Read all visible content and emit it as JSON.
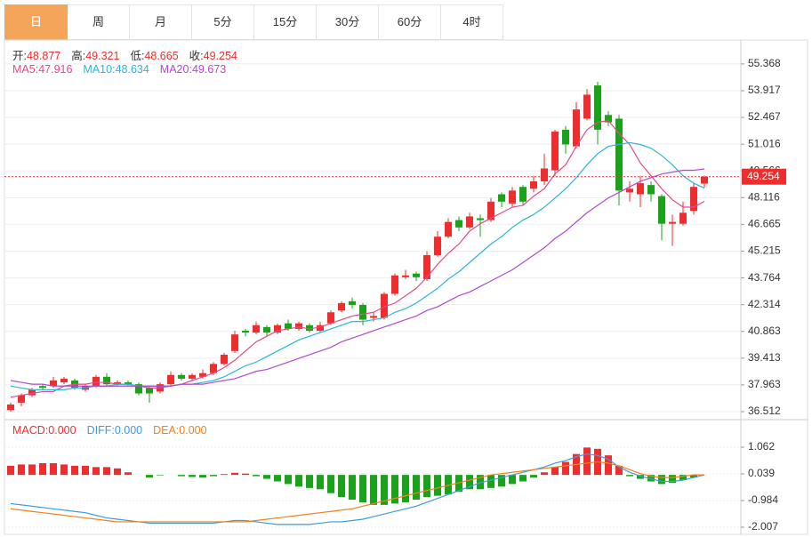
{
  "tabs": [
    "日",
    "周",
    "月",
    "5分",
    "15分",
    "30分",
    "60分",
    "4时"
  ],
  "active_tab": 0,
  "chart_data": [
    {
      "type": "candlestick",
      "ohlc_labels": [
        "开:",
        "高:",
        "低:",
        "收:"
      ],
      "up_color": "#ee2e2e",
      "down_color": "#1aa31a",
      "open": [
        36.6,
        37.0,
        37.4,
        37.9,
        37.9,
        38.1,
        38.2,
        37.7,
        37.9,
        38.4,
        38.0,
        38.1,
        38.0,
        37.8,
        37.6,
        38.0,
        38.5,
        38.3,
        38.4,
        38.6,
        39.1,
        39.8,
        40.9,
        40.8,
        41.1,
        40.8,
        41.3,
        41.0,
        41.2,
        40.9,
        41.3,
        42.0,
        42.5,
        42.3,
        41.6,
        41.6,
        42.9,
        43.8,
        44.0,
        43.7,
        45.0,
        46.0,
        46.9,
        46.5,
        47.0,
        46.9,
        48.3,
        47.8,
        48.7,
        48.6,
        49.0,
        49.6,
        51.8,
        50.9,
        52.4,
        54.2,
        52.6,
        52.4,
        48.4,
        48.3,
        48.8,
        48.2,
        46.7,
        46.7,
        47.4,
        48.877
      ],
      "high": [
        37.0,
        37.5,
        37.8,
        38.0,
        38.4,
        38.4,
        38.3,
        38.0,
        38.5,
        38.6,
        38.2,
        38.2,
        38.1,
        37.9,
        38.1,
        38.7,
        38.6,
        38.6,
        38.8,
        39.2,
        39.7,
        40.9,
        41.0,
        41.4,
        41.2,
        41.3,
        41.5,
        41.4,
        41.3,
        41.4,
        42.0,
        42.5,
        42.7,
        42.4,
        41.9,
        43.0,
        44.0,
        44.2,
        44.1,
        45.2,
        46.3,
        47.0,
        47.1,
        47.3,
        47.2,
        48.1,
        48.4,
        48.7,
        48.8,
        49.3,
        50.5,
        51.8,
        52.0,
        53.3,
        54.0,
        54.4,
        52.8,
        52.6,
        49.0,
        49.3,
        49.0,
        48.3,
        47.2,
        47.9,
        48.9,
        49.321
      ],
      "low": [
        36.5,
        36.8,
        37.3,
        37.7,
        37.8,
        38.0,
        37.7,
        37.6,
        37.8,
        37.9,
        37.9,
        37.9,
        37.4,
        37.0,
        37.5,
        37.9,
        38.2,
        38.2,
        38.3,
        38.5,
        39.0,
        39.7,
        40.6,
        40.7,
        40.6,
        40.7,
        40.9,
        40.9,
        40.8,
        40.8,
        41.2,
        41.9,
        42.1,
        41.2,
        41.4,
        41.5,
        42.8,
        43.7,
        43.6,
        43.6,
        44.9,
        45.9,
        46.3,
        46.4,
        46.0,
        46.8,
        47.6,
        47.6,
        47.7,
        48.4,
        48.8,
        49.3,
        50.5,
        50.8,
        52.3,
        51.0,
        52.0,
        47.7,
        47.9,
        47.6,
        47.9,
        45.8,
        45.5,
        46.6,
        47.2,
        48.665
      ],
      "close": [
        36.9,
        37.4,
        37.7,
        37.8,
        38.2,
        38.3,
        37.8,
        37.9,
        38.4,
        38.0,
        38.1,
        38.0,
        37.5,
        37.5,
        38.0,
        38.5,
        38.3,
        38.5,
        38.6,
        39.1,
        39.6,
        40.7,
        40.8,
        41.2,
        40.8,
        41.2,
        41.0,
        41.3,
        40.9,
        41.2,
        41.9,
        42.4,
        42.3,
        41.5,
        41.7,
        42.9,
        43.9,
        43.9,
        43.8,
        45.0,
        46.0,
        46.8,
        46.5,
        47.1,
        46.9,
        47.9,
        47.9,
        48.5,
        47.9,
        49.0,
        49.7,
        51.7,
        51.0,
        52.9,
        53.7,
        51.8,
        52.2,
        48.5,
        48.6,
        48.9,
        48.3,
        46.7,
        46.8,
        47.3,
        48.7,
        49.254
      ],
      "series": [
        {
          "name": "MA5:",
          "color": "#e8488a",
          "values": [
            37.3,
            37.4,
            37.5,
            37.6,
            37.6,
            37.9,
            38.0,
            38.0,
            38.1,
            38.1,
            38.0,
            38.0,
            37.9,
            37.8,
            37.8,
            37.9,
            38.0,
            38.2,
            38.4,
            38.6,
            38.9,
            39.3,
            39.8,
            40.3,
            40.6,
            40.9,
            41.0,
            41.1,
            41.0,
            41.1,
            41.3,
            41.5,
            41.7,
            41.8,
            41.9,
            42.2,
            42.4,
            42.8,
            43.2,
            43.8,
            44.5,
            45.1,
            45.6,
            46.3,
            46.7,
            47.0,
            47.3,
            47.6,
            47.7,
            48.2,
            48.6,
            49.4,
            49.9,
            50.9,
            51.8,
            52.2,
            52.3,
            51.6,
            51.0,
            50.0,
            49.3,
            48.6,
            48.0,
            47.6,
            47.6,
            47.916
          ]
        },
        {
          "name": "MA10:",
          "color": "#2bb7d5",
          "values": [
            37.9,
            37.8,
            37.7,
            37.7,
            37.7,
            37.7,
            37.8,
            37.8,
            37.9,
            37.9,
            38.0,
            38.0,
            37.9,
            37.9,
            37.9,
            37.9,
            38.0,
            38.0,
            38.1,
            38.2,
            38.4,
            38.7,
            39.0,
            39.2,
            39.5,
            39.8,
            40.1,
            40.4,
            40.6,
            40.8,
            41.0,
            41.2,
            41.4,
            41.4,
            41.5,
            41.6,
            41.9,
            42.1,
            42.4,
            42.8,
            43.2,
            43.7,
            44.1,
            44.6,
            45.1,
            45.6,
            46.0,
            46.5,
            46.9,
            47.2,
            47.6,
            48.1,
            48.6,
            49.2,
            49.9,
            50.5,
            50.9,
            51.0,
            51.1,
            51.0,
            50.8,
            50.4,
            49.9,
            49.3,
            48.9,
            48.634
          ]
        },
        {
          "name": "MA20:",
          "color": "#b04bcc",
          "values": [
            38.2,
            38.1,
            38.0,
            38.0,
            37.9,
            37.9,
            37.9,
            37.9,
            37.9,
            37.9,
            37.9,
            37.9,
            37.9,
            37.9,
            37.9,
            37.9,
            38.0,
            38.0,
            38.0,
            38.1,
            38.2,
            38.3,
            38.5,
            38.7,
            38.8,
            39.0,
            39.2,
            39.4,
            39.6,
            39.8,
            40.0,
            40.3,
            40.5,
            40.7,
            40.9,
            41.1,
            41.3,
            41.5,
            41.7,
            42.0,
            42.2,
            42.5,
            42.8,
            43.0,
            43.3,
            43.6,
            43.9,
            44.2,
            44.6,
            45.0,
            45.4,
            45.9,
            46.3,
            46.8,
            47.3,
            47.7,
            48.1,
            48.4,
            48.7,
            49.0,
            49.2,
            49.4,
            49.5,
            49.6,
            49.6,
            49.673
          ]
        }
      ],
      "ylim": [
        36.175,
        56.52
      ],
      "yticks": [
        55.368,
        53.917,
        52.467,
        51.016,
        49.566,
        48.116,
        46.665,
        45.215,
        43.764,
        42.314,
        40.863,
        39.413,
        37.963,
        36.512
      ],
      "grid": true
    },
    {
      "type": "macd",
      "down_color": "#1aa31a",
      "series": [
        {
          "name": "MACD:",
          "readout": "0.000",
          "color": "#ee2e2e",
          "values": [
            0.35,
            0.4,
            0.4,
            0.45,
            0.45,
            0.4,
            0.35,
            0.35,
            0.3,
            0.3,
            0.25,
            0.1,
            0.0,
            -0.1,
            -0.02,
            0.0,
            -0.05,
            -0.08,
            -0.1,
            -0.05,
            0.03,
            0.08,
            0.05,
            -0.05,
            -0.15,
            -0.25,
            -0.35,
            -0.45,
            -0.5,
            -0.55,
            -0.7,
            -0.85,
            -0.95,
            -1.05,
            -1.15,
            -1.15,
            -1.1,
            -1.05,
            -0.95,
            -0.85,
            -0.8,
            -0.75,
            -0.65,
            -0.55,
            -0.55,
            -0.5,
            -0.45,
            -0.35,
            -0.25,
            -0.1,
            0.1,
            0.3,
            0.5,
            0.8,
            1.05,
            1.0,
            0.75,
            0.35,
            -0.05,
            -0.15,
            -0.25,
            -0.35,
            -0.3,
            -0.2,
            -0.1,
            0.0
          ]
        },
        {
          "name": "DIFF:",
          "readout": "0.000",
          "color": "#3a9de0",
          "values": [
            -1.1,
            -1.15,
            -1.2,
            -1.25,
            -1.3,
            -1.35,
            -1.4,
            -1.45,
            -1.55,
            -1.65,
            -1.7,
            -1.75,
            -1.8,
            -1.85,
            -1.85,
            -1.85,
            -1.85,
            -1.85,
            -1.85,
            -1.85,
            -1.8,
            -1.75,
            -1.75,
            -1.8,
            -1.85,
            -1.9,
            -1.9,
            -1.9,
            -1.9,
            -1.85,
            -1.8,
            -1.8,
            -1.75,
            -1.7,
            -1.6,
            -1.5,
            -1.4,
            -1.3,
            -1.2,
            -1.05,
            -0.9,
            -0.75,
            -0.6,
            -0.45,
            -0.3,
            -0.2,
            -0.1,
            0.0,
            0.1,
            0.2,
            0.3,
            0.45,
            0.55,
            0.7,
            0.8,
            0.75,
            0.6,
            0.3,
            0.1,
            -0.05,
            -0.15,
            -0.25,
            -0.25,
            -0.2,
            -0.1,
            0.0
          ]
        },
        {
          "name": "DEA:",
          "readout": "0.000",
          "color": "#f08020",
          "values": [
            -1.3,
            -1.35,
            -1.4,
            -1.45,
            -1.5,
            -1.55,
            -1.6,
            -1.65,
            -1.7,
            -1.75,
            -1.8,
            -1.8,
            -1.8,
            -1.8,
            -1.8,
            -1.8,
            -1.8,
            -1.8,
            -1.8,
            -1.8,
            -1.8,
            -1.8,
            -1.8,
            -1.75,
            -1.7,
            -1.65,
            -1.6,
            -1.55,
            -1.5,
            -1.45,
            -1.4,
            -1.35,
            -1.3,
            -1.2,
            -1.1,
            -1.0,
            -0.9,
            -0.8,
            -0.7,
            -0.6,
            -0.5,
            -0.4,
            -0.3,
            -0.2,
            -0.1,
            0.0,
            0.05,
            0.1,
            0.15,
            0.2,
            0.25,
            0.3,
            0.35,
            0.4,
            0.45,
            0.5,
            0.45,
            0.35,
            0.2,
            0.05,
            -0.05,
            -0.1,
            -0.1,
            -0.05,
            0.0,
            0.0
          ]
        }
      ],
      "ylim": [
        -2.245,
        2.017
      ],
      "yticks": [
        1.062,
        0.039,
        -0.984,
        -2.007
      ],
      "grid": true
    }
  ]
}
